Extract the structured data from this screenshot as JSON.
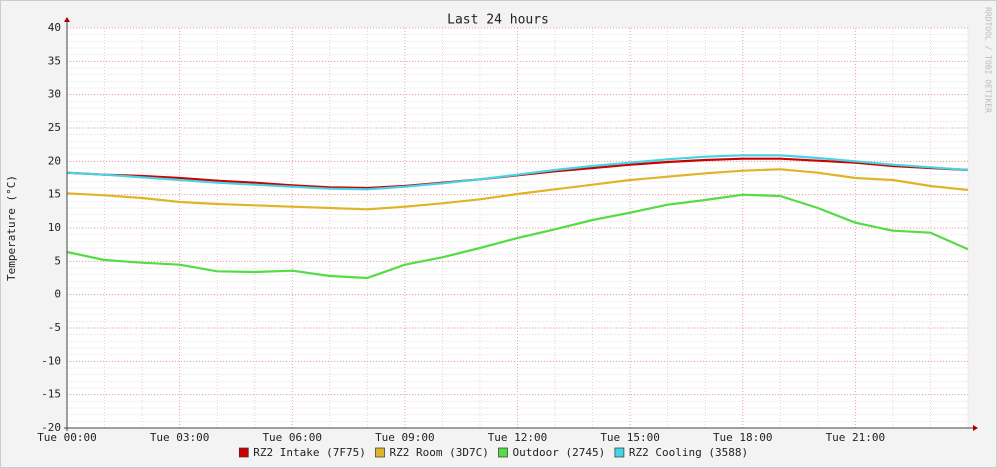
{
  "chart_data": {
    "type": "line",
    "title": "Last 24 hours",
    "y_label": "Temperature (°C)",
    "watermark": "RRDTOOL / TOBI OETIKER",
    "categories": [
      "Tue 00:00",
      null,
      null,
      "Tue 03:00",
      null,
      null,
      "Tue 06:00",
      null,
      null,
      "Tue 09:00",
      null,
      null,
      "Tue 12:00",
      null,
      null,
      "Tue 15:00",
      null,
      null,
      "Tue 18:00",
      null,
      null,
      "Tue 21:00",
      null,
      null,
      null
    ],
    "series": [
      {
        "name": "RZ2 Intake (7F75)",
        "color": "#cc0000",
        "values": [
          18.3,
          18.0,
          17.8,
          17.5,
          17.1,
          16.8,
          16.4,
          16.1,
          16.0,
          16.3,
          16.8,
          17.3,
          17.9,
          18.5,
          19.0,
          19.5,
          19.9,
          20.2,
          20.4,
          20.4,
          20.1,
          19.8,
          19.3,
          19.0,
          18.7
        ]
      },
      {
        "name": "RZ2 Room (3D7C)",
        "color": "#e0b428",
        "values": [
          15.2,
          14.9,
          14.5,
          13.9,
          13.6,
          13.4,
          13.2,
          13.0,
          12.8,
          13.2,
          13.7,
          14.3,
          15.1,
          15.8,
          16.5,
          17.2,
          17.7,
          18.2,
          18.6,
          18.8,
          18.3,
          17.5,
          17.2,
          16.3,
          15.7
        ]
      },
      {
        "name": "Outdoor (2745)",
        "color": "#54dc44",
        "values": [
          6.4,
          5.2,
          4.8,
          4.5,
          3.5,
          3.4,
          3.6,
          2.8,
          2.5,
          4.5,
          5.6,
          7.0,
          8.5,
          9.8,
          11.2,
          12.3,
          13.5,
          14.2,
          15.0,
          14.8,
          13.0,
          10.8,
          9.6,
          9.3,
          6.8
        ]
      },
      {
        "name": "RZ2 Cooling (3588)",
        "color": "#44d4e4",
        "values": [
          18.3,
          18.0,
          17.6,
          17.2,
          16.8,
          16.5,
          16.2,
          15.9,
          15.8,
          16.2,
          16.7,
          17.3,
          18.0,
          18.7,
          19.3,
          19.8,
          20.3,
          20.7,
          20.9,
          20.9,
          20.5,
          20.0,
          19.5,
          19.1,
          18.7
        ]
      }
    ],
    "ylim": [
      -20,
      40
    ],
    "yticks": [
      -20,
      -15,
      -10,
      -5,
      0,
      5,
      10,
      15,
      20,
      25,
      30,
      35,
      40
    ],
    "grid": true
  }
}
